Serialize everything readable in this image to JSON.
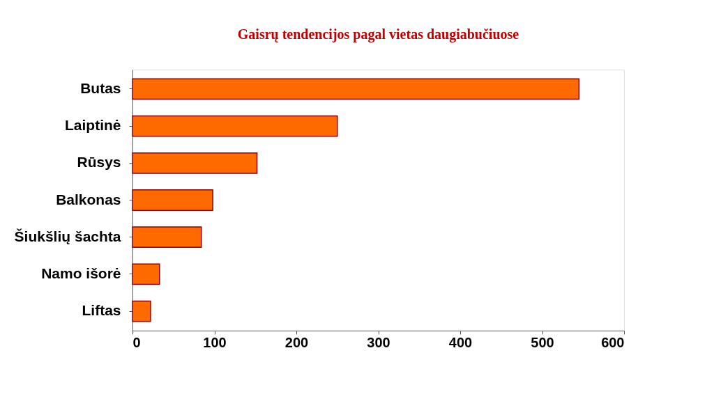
{
  "chart_data": {
    "type": "bar",
    "orientation": "horizontal",
    "title": "Gaisrų tendencijos pagal vietas daugiabučiuose",
    "categories": [
      "Butas",
      "Laiptinė",
      "Rūsys",
      "Balkonas",
      "Šiukšlių šachta",
      "Namo išorė",
      "Liftas"
    ],
    "values": [
      545,
      250,
      152,
      98,
      84,
      33,
      22
    ],
    "color": "#ff6a00",
    "xlim": [
      0,
      600
    ],
    "xticks": [
      0,
      100,
      200,
      300,
      400,
      500,
      600
    ],
    "grid": false
  }
}
